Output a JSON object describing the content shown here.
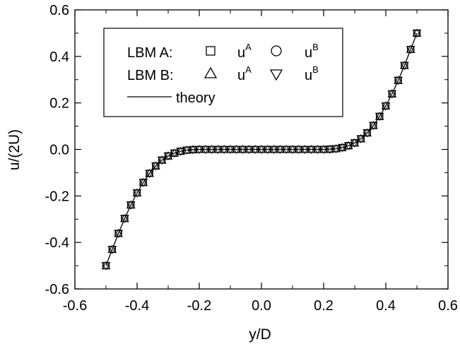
{
  "chart_data": {
    "type": "line",
    "xlabel": "y/D",
    "ylabel": "u/(2U)",
    "xlim": [
      -0.6,
      0.6
    ],
    "ylim": [
      -0.6,
      0.6
    ],
    "xticks": [
      "-0.6",
      "-0.4",
      "-0.2",
      "0.0",
      "0.2",
      "0.4",
      "0.6"
    ],
    "yticks": [
      "-0.6",
      "-0.4",
      "-0.2",
      "0.0",
      "0.2",
      "0.4",
      "0.6"
    ],
    "grid": false,
    "legend_position": "top-left",
    "legend": {
      "row1_label": "LBM A:",
      "row2_label": "LBM B:",
      "row3_label": "theory",
      "u_base": "u",
      "sup_a": "A",
      "sup_b": "B"
    },
    "x": [
      -0.5,
      -0.48,
      -0.46,
      -0.44,
      -0.42,
      -0.4,
      -0.38,
      -0.36,
      -0.34,
      -0.32,
      -0.3,
      -0.28,
      -0.26,
      -0.24,
      -0.22,
      -0.2,
      -0.18,
      -0.16,
      -0.14,
      -0.12,
      -0.1,
      -0.08,
      -0.06,
      -0.04,
      -0.02,
      0.0,
      0.02,
      0.04,
      0.06,
      0.08,
      0.1,
      0.12,
      0.14,
      0.16,
      0.18,
      0.2,
      0.22,
      0.24,
      0.26,
      0.28,
      0.3,
      0.32,
      0.34,
      0.36,
      0.38,
      0.4,
      0.42,
      0.44,
      0.46,
      0.48,
      0.5
    ],
    "series": [
      {
        "name": "LBM A: u^A",
        "marker": "square",
        "values": [
          -0.5,
          -0.43,
          -0.361,
          -0.297,
          -0.239,
          -0.187,
          -0.142,
          -0.103,
          -0.071,
          -0.046,
          -0.028,
          -0.016,
          -0.008,
          -0.003,
          -0.001,
          0,
          0,
          0,
          0,
          0,
          0,
          0,
          0,
          0,
          0,
          0,
          0,
          0,
          0,
          0,
          0,
          0,
          0,
          0,
          0,
          0,
          0.001,
          0.003,
          0.008,
          0.016,
          0.028,
          0.046,
          0.071,
          0.103,
          0.142,
          0.187,
          0.239,
          0.297,
          0.361,
          0.43,
          0.5
        ]
      },
      {
        "name": "LBM A: u^B",
        "marker": "circle",
        "values": [
          -0.5,
          -0.43,
          -0.361,
          -0.297,
          -0.239,
          -0.187,
          -0.142,
          -0.103,
          -0.071,
          -0.046,
          -0.028,
          -0.016,
          -0.008,
          -0.003,
          -0.001,
          0,
          0,
          0,
          0,
          0,
          0,
          0,
          0,
          0,
          0,
          0,
          0,
          0,
          0,
          0,
          0,
          0,
          0,
          0,
          0,
          0,
          0.001,
          0.003,
          0.008,
          0.016,
          0.028,
          0.046,
          0.071,
          0.103,
          0.142,
          0.187,
          0.239,
          0.297,
          0.361,
          0.43,
          0.5
        ]
      },
      {
        "name": "LBM B: u^A",
        "marker": "triangle-up",
        "values": [
          -0.5,
          -0.43,
          -0.361,
          -0.297,
          -0.239,
          -0.187,
          -0.142,
          -0.103,
          -0.071,
          -0.046,
          -0.028,
          -0.016,
          -0.008,
          -0.003,
          -0.001,
          0,
          0,
          0,
          0,
          0,
          0,
          0,
          0,
          0,
          0,
          0,
          0,
          0,
          0,
          0,
          0,
          0,
          0,
          0,
          0,
          0,
          0.001,
          0.003,
          0.008,
          0.016,
          0.028,
          0.046,
          0.071,
          0.103,
          0.142,
          0.187,
          0.239,
          0.297,
          0.361,
          0.43,
          0.5
        ]
      },
      {
        "name": "LBM B: u^B",
        "marker": "triangle-down",
        "values": [
          -0.5,
          -0.43,
          -0.361,
          -0.297,
          -0.239,
          -0.187,
          -0.142,
          -0.103,
          -0.071,
          -0.046,
          -0.028,
          -0.016,
          -0.008,
          -0.003,
          -0.001,
          0,
          0,
          0,
          0,
          0,
          0,
          0,
          0,
          0,
          0,
          0,
          0,
          0,
          0,
          0,
          0,
          0,
          0,
          0,
          0,
          0,
          0.001,
          0.003,
          0.008,
          0.016,
          0.028,
          0.046,
          0.071,
          0.103,
          0.142,
          0.187,
          0.239,
          0.297,
          0.361,
          0.43,
          0.5
        ]
      },
      {
        "name": "theory",
        "marker": "none",
        "values": [
          -0.5,
          -0.43,
          -0.361,
          -0.297,
          -0.239,
          -0.187,
          -0.142,
          -0.103,
          -0.071,
          -0.046,
          -0.028,
          -0.016,
          -0.008,
          -0.003,
          -0.001,
          0,
          0,
          0,
          0,
          0,
          0,
          0,
          0,
          0,
          0,
          0,
          0,
          0,
          0,
          0,
          0,
          0,
          0,
          0,
          0,
          0,
          0.001,
          0.003,
          0.008,
          0.016,
          0.028,
          0.046,
          0.071,
          0.103,
          0.142,
          0.187,
          0.239,
          0.297,
          0.361,
          0.43,
          0.5
        ]
      }
    ]
  }
}
